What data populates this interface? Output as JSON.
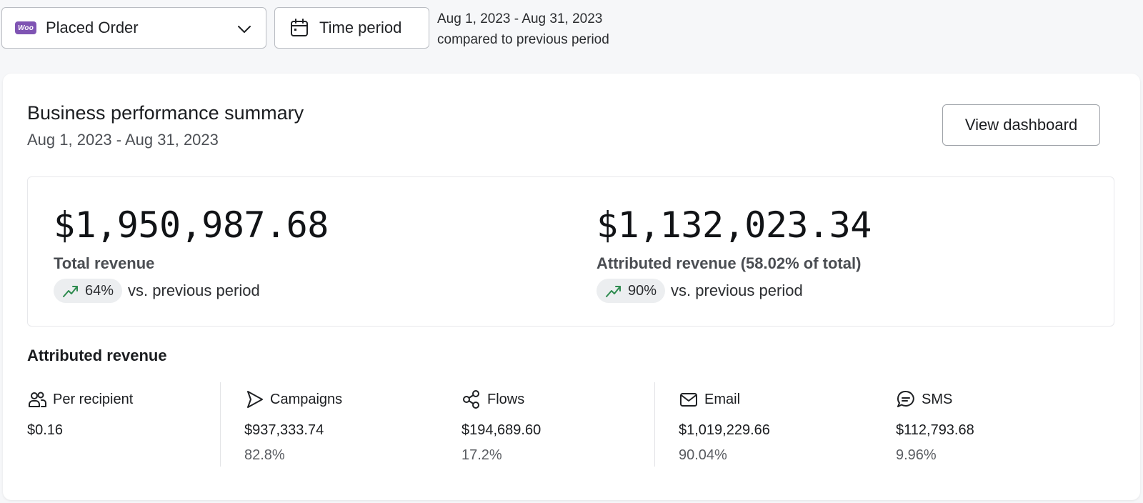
{
  "filters": {
    "metric_label": "Placed Order",
    "metric_icon": "woo-logo",
    "time_button_label": "Time period",
    "range_line1": "Aug 1, 2023 - Aug 31, 2023",
    "range_line2": "compared to previous period"
  },
  "summary": {
    "title": "Business performance summary",
    "subtitle": "Aug 1, 2023 - Aug 31, 2023",
    "view_dashboard_label": "View dashboard",
    "kpis": [
      {
        "value": "$1,950,987.68",
        "label": "Total revenue",
        "change": "64%",
        "compare_text": "vs. previous period",
        "trend_icon": "trending-up-icon"
      },
      {
        "value": "$1,132,023.34",
        "label": "Attributed revenue (58.02% of total)",
        "change": "90%",
        "compare_text": "vs. previous period",
        "trend_icon": "trending-up-icon"
      }
    ]
  },
  "attributed": {
    "title": "Attributed revenue",
    "columns": [
      {
        "icon": "people-icon",
        "label": "Per recipient",
        "value": "$0.16",
        "percent": ""
      },
      {
        "icon": "send-icon",
        "label": "Campaigns",
        "value": "$937,333.74",
        "percent": "82.8%"
      },
      {
        "icon": "share-icon",
        "label": "Flows",
        "value": "$194,689.60",
        "percent": "17.2%"
      },
      {
        "icon": "mail-icon",
        "label": "Email",
        "value": "$1,019,229.66",
        "percent": "90.04%"
      },
      {
        "icon": "chat-icon",
        "label": "SMS",
        "value": "$112,793.68",
        "percent": "9.96%"
      }
    ]
  },
  "colors": {
    "woo_purple": "#7f54b3",
    "trend_green": "#2e8b4f",
    "page_bg": "#f6f7f9"
  }
}
